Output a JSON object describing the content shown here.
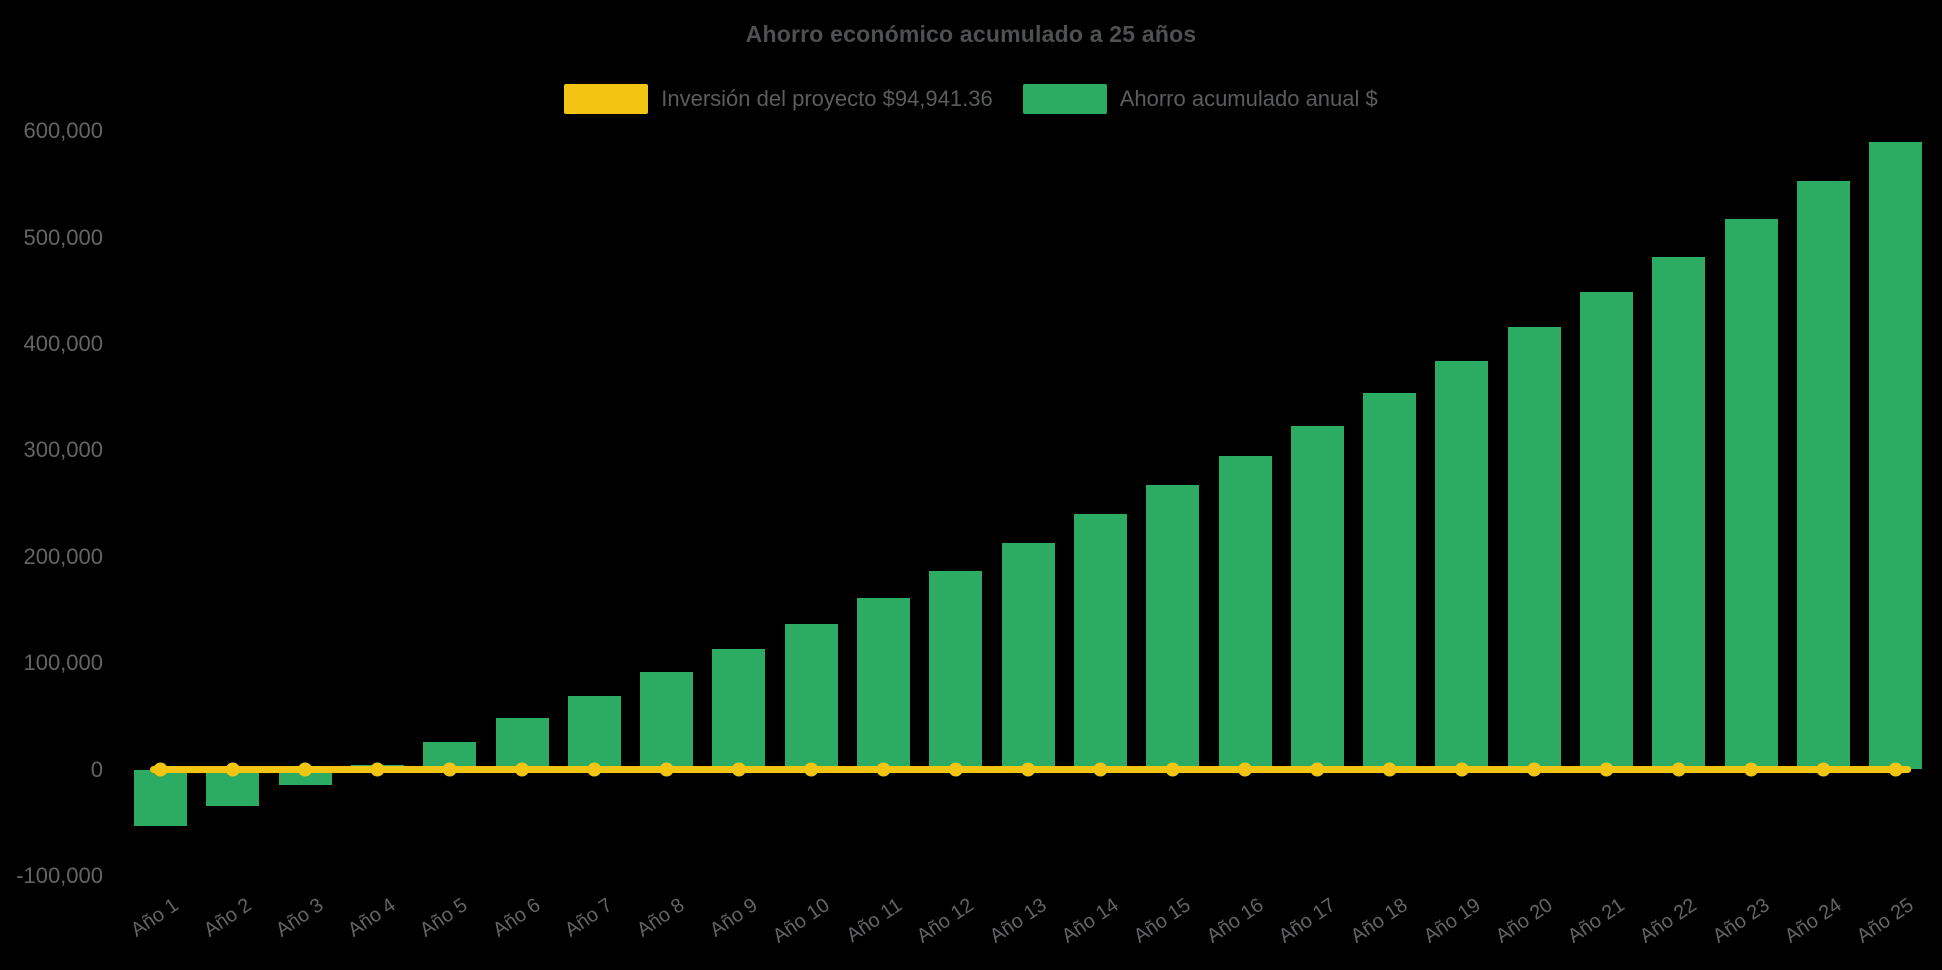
{
  "chart_data": {
    "type": "bar",
    "title": "Ahorro económico acumulado a 25 años",
    "xlabel": "",
    "ylabel": "",
    "categories": [
      "Año 1",
      "Año 2",
      "Año 3",
      "Año 4",
      "Año 5",
      "Año 6",
      "Año 7",
      "Año 8",
      "Año 9",
      "Año 10",
      "Año 11",
      "Año 12",
      "Año 13",
      "Año 14",
      "Año 15",
      "Año 16",
      "Año 17",
      "Año 18",
      "Año 19",
      "Año 20",
      "Año 21",
      "Año 22",
      "Año 23",
      "Año 24",
      "Año 25"
    ],
    "series": [
      {
        "name": "Inversión del proyecto $94,941.36",
        "type": "line",
        "color_key": "investment_yellow",
        "values": [
          0,
          0,
          0,
          0,
          0,
          0,
          0,
          0,
          0,
          0,
          0,
          0,
          0,
          0,
          0,
          0,
          0,
          0,
          0,
          0,
          0,
          0,
          0,
          0,
          0
        ]
      },
      {
        "name": "Ahorro acumulado anual $",
        "type": "bar",
        "color_key": "savings_green",
        "values": [
          -53000,
          -34000,
          -15000,
          4000,
          26000,
          48000,
          69000,
          92000,
          113000,
          137000,
          161000,
          187000,
          213000,
          240000,
          267000,
          295000,
          323000,
          354000,
          384000,
          416000,
          449000,
          482000,
          517000,
          553000,
          590000
        ]
      }
    ],
    "ylim": [
      -100000,
      600000
    ],
    "ytick_interval": 100000,
    "y_ticks": [
      {
        "value": 600000,
        "label": "600,000"
      },
      {
        "value": 500000,
        "label": "500,000"
      },
      {
        "value": 400000,
        "label": "400,000"
      },
      {
        "value": 300000,
        "label": "300,000"
      },
      {
        "value": 200000,
        "label": "200,000"
      },
      {
        "value": 100000,
        "label": "100,000"
      },
      {
        "value": 0,
        "label": "0"
      },
      {
        "value": -100000,
        "label": "-100,000"
      }
    ],
    "grid": false,
    "legend_position": "top",
    "x_tick_rotation_deg": -34
  },
  "colors": {
    "background": "#000000",
    "savings_green": "#2BAC62",
    "investment_yellow": "#F2C512",
    "title_text": "#4F5052",
    "axis_text": "#636466",
    "legend_text": "#5B5C5E"
  }
}
